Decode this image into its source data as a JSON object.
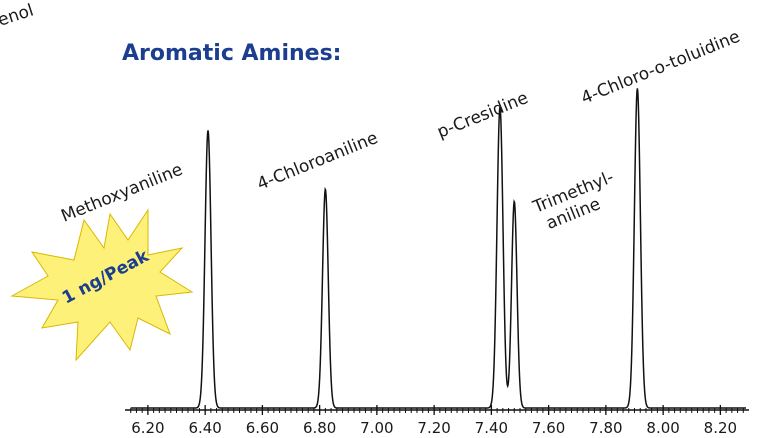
{
  "chart_data": {
    "type": "line",
    "title": "Aromatic Amines:",
    "corner_text": "enol",
    "badge": "1 ng/Peak",
    "xlabel": "",
    "ylabel": "",
    "xlim": [
      6.12,
      8.3
    ],
    "ylim": [
      0,
      100
    ],
    "x_ticks": [
      "6.20",
      "6.40",
      "6.60",
      "6.80",
      "7.00",
      "7.20",
      "7.40",
      "7.60",
      "7.80",
      "8.00",
      "8.20"
    ],
    "x_tick_values": [
      6.2,
      6.4,
      6.6,
      6.8,
      7.0,
      7.2,
      7.4,
      7.6,
      7.8,
      8.0,
      8.2
    ],
    "peaks": [
      {
        "name": "Methoxyaniline",
        "rt": 6.41,
        "height": 86.5,
        "width": 0.0105
      },
      {
        "name": "4-Chloroaniline",
        "rt": 6.82,
        "height": 68.2,
        "width": 0.01
      },
      {
        "name": "p-Cresidine",
        "rt": 7.43,
        "height": 93.8,
        "width": 0.0105
      },
      {
        "name": "Trimethyl-aniline",
        "rt": 7.48,
        "height": 64.4,
        "width": 0.0095
      },
      {
        "name": "4-Chloro-o-toluidine",
        "rt": 7.91,
        "height": 99.6,
        "width": 0.0105
      }
    ]
  }
}
